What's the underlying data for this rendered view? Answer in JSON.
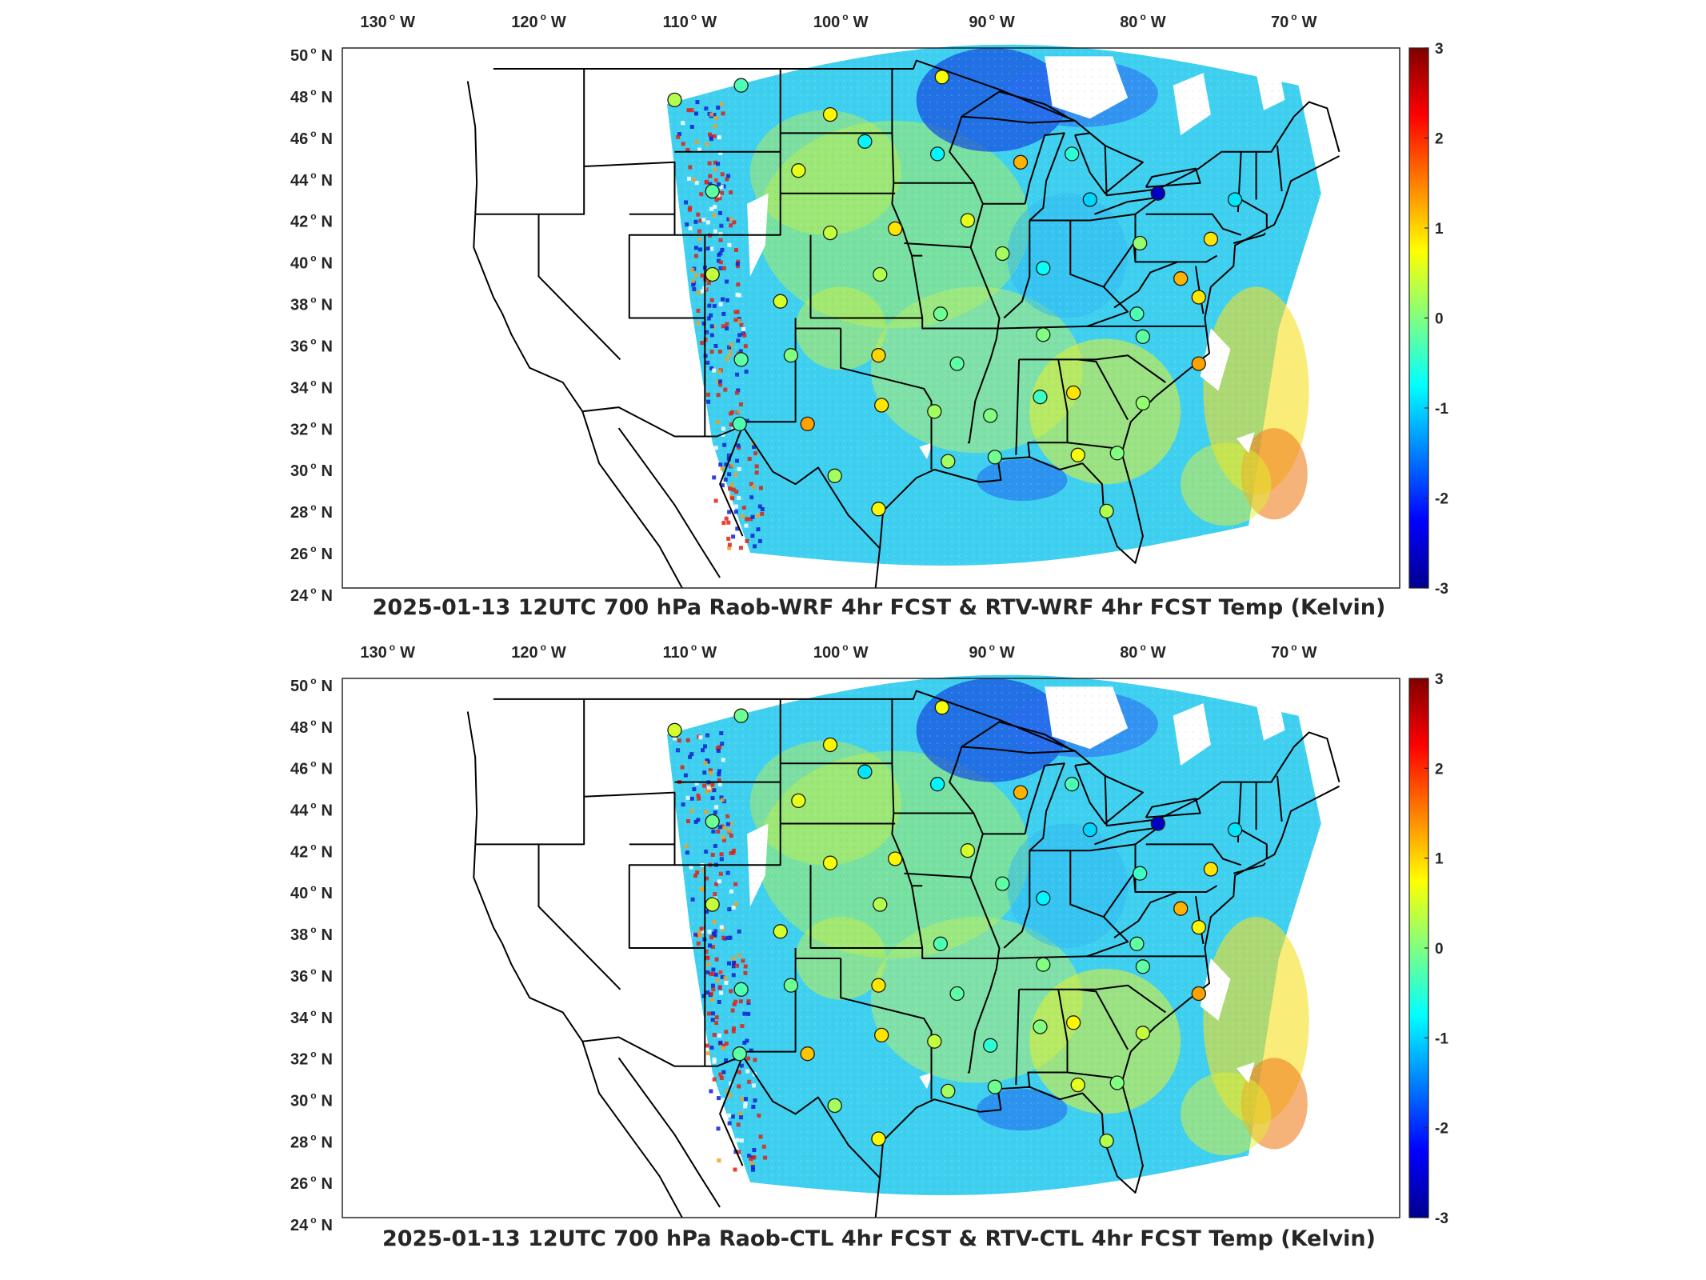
{
  "figure": {
    "panels": [
      {
        "id": "top",
        "title": "2025-01-13 12UTC 700 hPa Raob-WRF 4hr FCST & RTV-WRF 4hr FCST Temp (Kelvin)"
      },
      {
        "id": "bottom",
        "title": "2025-01-13 12UTC 700 hPa Raob-CTL 4hr FCST & RTV-CTL 4hr FCST Temp (Kelvin)"
      }
    ],
    "lon_ticks": [
      {
        "value": -130,
        "label": "130",
        "hem": "W"
      },
      {
        "value": -120,
        "label": "120",
        "hem": "W"
      },
      {
        "value": -110,
        "label": "110",
        "hem": "W"
      },
      {
        "value": -100,
        "label": "100",
        "hem": "W"
      },
      {
        "value": -90,
        "label": "90",
        "hem": "W"
      },
      {
        "value": -80,
        "label": "80",
        "hem": "W"
      },
      {
        "value": -70,
        "label": "70",
        "hem": "W"
      }
    ],
    "lat_ticks": [
      {
        "value": 50,
        "label": "50",
        "hem": "N"
      },
      {
        "value": 48,
        "label": "48",
        "hem": "N"
      },
      {
        "value": 46,
        "label": "46",
        "hem": "N"
      },
      {
        "value": 44,
        "label": "44",
        "hem": "N"
      },
      {
        "value": 42,
        "label": "42",
        "hem": "N"
      },
      {
        "value": 40,
        "label": "40",
        "hem": "N"
      },
      {
        "value": 38,
        "label": "38",
        "hem": "N"
      },
      {
        "value": 36,
        "label": "36",
        "hem": "N"
      },
      {
        "value": 34,
        "label": "34",
        "hem": "N"
      },
      {
        "value": 32,
        "label": "32",
        "hem": "N"
      },
      {
        "value": 30,
        "label": "30",
        "hem": "N"
      },
      {
        "value": 28,
        "label": "28",
        "hem": "N"
      },
      {
        "value": 26,
        "label": "26",
        "hem": "N"
      },
      {
        "value": 24,
        "label": "24",
        "hem": "N"
      }
    ],
    "colorbar": {
      "colormap": "jet",
      "ticks": [
        3,
        2,
        1,
        0,
        -1,
        -2,
        -3
      ],
      "tick_labels": [
        "3",
        "2",
        "1",
        "0",
        "-1",
        "-2",
        "-3"
      ],
      "range": [
        -3,
        3
      ]
    },
    "colors": {
      "axis": "#262626",
      "coastline": "#000000",
      "missing": "#ffffff"
    }
  },
  "raob_stations": {
    "top": [
      {
        "lon": -111.0,
        "lat": 47.5,
        "value": 0.3
      },
      {
        "lon": -106.6,
        "lat": 48.2,
        "value": -0.3
      },
      {
        "lon": -100.7,
        "lat": 46.8,
        "value": 0.8
      },
      {
        "lon": -93.3,
        "lat": 48.6,
        "value": 0.7
      },
      {
        "lon": -98.4,
        "lat": 45.5,
        "value": -0.8
      },
      {
        "lon": -93.6,
        "lat": 44.9,
        "value": -0.8
      },
      {
        "lon": -88.1,
        "lat": 44.5,
        "value": 1.2
      },
      {
        "lon": -84.7,
        "lat": 44.9,
        "value": -0.5
      },
      {
        "lon": -83.5,
        "lat": 42.7,
        "value": -1.0
      },
      {
        "lon": -79.0,
        "lat": 43.0,
        "value": -2.6
      },
      {
        "lon": -73.9,
        "lat": 42.7,
        "value": -0.9
      },
      {
        "lon": -108.5,
        "lat": 43.1,
        "value": -0.2
      },
      {
        "lon": -102.8,
        "lat": 44.1,
        "value": 0.6
      },
      {
        "lon": -100.7,
        "lat": 41.1,
        "value": 0.4
      },
      {
        "lon": -96.4,
        "lat": 41.3,
        "value": 0.9
      },
      {
        "lon": -91.6,
        "lat": 41.7,
        "value": 0.6
      },
      {
        "lon": -89.3,
        "lat": 40.1,
        "value": 0.2
      },
      {
        "lon": -86.6,
        "lat": 39.4,
        "value": -0.7
      },
      {
        "lon": -80.2,
        "lat": 40.6,
        "value": 0.1
      },
      {
        "lon": -77.5,
        "lat": 38.9,
        "value": 1.2
      },
      {
        "lon": -75.5,
        "lat": 40.8,
        "value": 0.9
      },
      {
        "lon": -108.5,
        "lat": 39.1,
        "value": 0.4
      },
      {
        "lon": -104.0,
        "lat": 37.8,
        "value": 0.5
      },
      {
        "lon": -97.4,
        "lat": 39.1,
        "value": 0.3
      },
      {
        "lon": -93.4,
        "lat": 37.2,
        "value": -0.1
      },
      {
        "lon": -86.6,
        "lat": 36.2,
        "value": 0.0
      },
      {
        "lon": -80.4,
        "lat": 37.2,
        "value": -0.3
      },
      {
        "lon": -76.3,
        "lat": 38.0,
        "value": 0.9
      },
      {
        "lon": -106.6,
        "lat": 35.0,
        "value": -0.2
      },
      {
        "lon": -103.3,
        "lat": 35.2,
        "value": 0.0
      },
      {
        "lon": -97.5,
        "lat": 35.2,
        "value": 1.0
      },
      {
        "lon": -92.3,
        "lat": 34.8,
        "value": -0.2
      },
      {
        "lon": -84.6,
        "lat": 33.4,
        "value": 0.9
      },
      {
        "lon": -86.8,
        "lat": 33.2,
        "value": -0.4
      },
      {
        "lon": -80.0,
        "lat": 36.1,
        "value": -0.2
      },
      {
        "lon": -76.3,
        "lat": 34.8,
        "value": 1.3
      },
      {
        "lon": -80.0,
        "lat": 32.9,
        "value": 0.1
      },
      {
        "lon": -106.7,
        "lat": 31.9,
        "value": -0.3
      },
      {
        "lon": -102.2,
        "lat": 31.9,
        "value": 1.3
      },
      {
        "lon": -97.3,
        "lat": 32.8,
        "value": 0.9
      },
      {
        "lon": -93.8,
        "lat": 32.5,
        "value": 0.2
      },
      {
        "lon": -90.1,
        "lat": 32.3,
        "value": 0.0
      },
      {
        "lon": -89.8,
        "lat": 30.3,
        "value": -0.1
      },
      {
        "lon": -92.9,
        "lat": 30.1,
        "value": 0.2
      },
      {
        "lon": -84.3,
        "lat": 30.4,
        "value": 0.7
      },
      {
        "lon": -81.7,
        "lat": 30.5,
        "value": 0.0
      },
      {
        "lon": -100.4,
        "lat": 29.4,
        "value": 0.2
      },
      {
        "lon": -97.5,
        "lat": 27.8,
        "value": 0.8
      },
      {
        "lon": -82.4,
        "lat": 27.7,
        "value": 0.3
      }
    ],
    "bottom": [
      {
        "lon": -111.0,
        "lat": 47.5,
        "value": 0.5
      },
      {
        "lon": -106.6,
        "lat": 48.2,
        "value": -0.1
      },
      {
        "lon": -100.7,
        "lat": 46.8,
        "value": 0.8
      },
      {
        "lon": -93.3,
        "lat": 48.6,
        "value": 0.7
      },
      {
        "lon": -98.4,
        "lat": 45.5,
        "value": -0.9
      },
      {
        "lon": -93.6,
        "lat": 44.9,
        "value": -0.8
      },
      {
        "lon": -88.1,
        "lat": 44.5,
        "value": 1.2
      },
      {
        "lon": -84.7,
        "lat": 44.9,
        "value": -0.3
      },
      {
        "lon": -83.5,
        "lat": 42.7,
        "value": -1.0
      },
      {
        "lon": -79.0,
        "lat": 43.0,
        "value": -2.6
      },
      {
        "lon": -73.9,
        "lat": 42.7,
        "value": -0.9
      },
      {
        "lon": -108.5,
        "lat": 43.1,
        "value": -0.1
      },
      {
        "lon": -102.8,
        "lat": 44.1,
        "value": 0.6
      },
      {
        "lon": -100.7,
        "lat": 41.1,
        "value": 0.7
      },
      {
        "lon": -96.4,
        "lat": 41.3,
        "value": 0.8
      },
      {
        "lon": -91.6,
        "lat": 41.7,
        "value": 0.5
      },
      {
        "lon": -89.3,
        "lat": 40.1,
        "value": -0.2
      },
      {
        "lon": -86.6,
        "lat": 39.4,
        "value": -0.8
      },
      {
        "lon": -80.2,
        "lat": 40.6,
        "value": -0.4
      },
      {
        "lon": -77.5,
        "lat": 38.9,
        "value": 1.2
      },
      {
        "lon": -75.5,
        "lat": 40.8,
        "value": 0.9
      },
      {
        "lon": -108.5,
        "lat": 39.1,
        "value": 0.4
      },
      {
        "lon": -104.0,
        "lat": 37.8,
        "value": 0.5
      },
      {
        "lon": -97.4,
        "lat": 39.1,
        "value": 0.3
      },
      {
        "lon": -93.4,
        "lat": 37.2,
        "value": -0.3
      },
      {
        "lon": -86.6,
        "lat": 36.2,
        "value": 0.0
      },
      {
        "lon": -80.4,
        "lat": 37.2,
        "value": -0.2
      },
      {
        "lon": -76.3,
        "lat": 38.0,
        "value": 0.8
      },
      {
        "lon": -106.6,
        "lat": 35.0,
        "value": -0.3
      },
      {
        "lon": -103.3,
        "lat": 35.2,
        "value": -0.1
      },
      {
        "lon": -97.5,
        "lat": 35.2,
        "value": 0.9
      },
      {
        "lon": -92.3,
        "lat": 34.8,
        "value": -0.2
      },
      {
        "lon": -84.6,
        "lat": 33.4,
        "value": 0.8
      },
      {
        "lon": -86.8,
        "lat": 33.2,
        "value": 0.0
      },
      {
        "lon": -80.0,
        "lat": 36.1,
        "value": -0.2
      },
      {
        "lon": -76.3,
        "lat": 34.8,
        "value": 1.3
      },
      {
        "lon": -80.0,
        "lat": 32.9,
        "value": 0.4
      },
      {
        "lon": -106.7,
        "lat": 31.9,
        "value": -0.2
      },
      {
        "lon": -102.2,
        "lat": 31.9,
        "value": 1.1
      },
      {
        "lon": -97.3,
        "lat": 32.8,
        "value": 0.9
      },
      {
        "lon": -93.8,
        "lat": 32.5,
        "value": 0.4
      },
      {
        "lon": -90.1,
        "lat": 32.3,
        "value": -0.5
      },
      {
        "lon": -89.8,
        "lat": 30.3,
        "value": -0.1
      },
      {
        "lon": -92.9,
        "lat": 30.1,
        "value": 0.2
      },
      {
        "lon": -84.3,
        "lat": 30.4,
        "value": 0.6
      },
      {
        "lon": -81.7,
        "lat": 30.5,
        "value": 0.0
      },
      {
        "lon": -100.4,
        "lat": 29.4,
        "value": 0.2
      },
      {
        "lon": -97.5,
        "lat": 27.8,
        "value": 0.8
      },
      {
        "lon": -82.4,
        "lat": 27.7,
        "value": 0.3
      }
    ]
  }
}
